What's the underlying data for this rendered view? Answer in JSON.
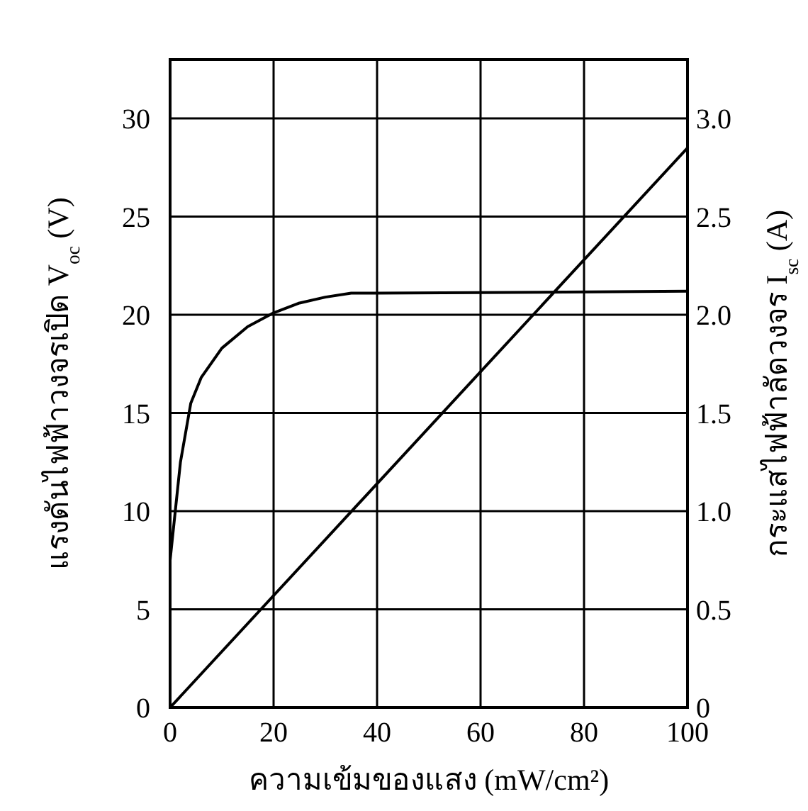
{
  "chart_data": {
    "type": "line",
    "xlabel": "ความเข้มของแสง (mW/cm²)",
    "ylabel": "แรงดันไฟฟ้าวงจรเปิด    V$_{oc}$ (V)",
    "y2label": "กระแสไฟฟ้าลัดวงจร    I$_{sc}$ (A)",
    "xlim": [
      0,
      100
    ],
    "xticks": [
      0,
      20,
      40,
      60,
      80,
      100
    ],
    "ylim": [
      0,
      33
    ],
    "yticks": [
      0,
      5,
      10,
      15,
      20,
      25,
      30
    ],
    "y2lim": [
      0,
      3.3
    ],
    "y2ticks": [
      {
        "value": 0,
        "label": "0"
      },
      {
        "value": 0.5,
        "label": "0.5"
      },
      {
        "value": 1,
        "label": "1.0"
      },
      {
        "value": 1.5,
        "label": "1.5"
      },
      {
        "value": 2,
        "label": "2.0"
      },
      {
        "value": 2.5,
        "label": "2.5"
      },
      {
        "value": 3,
        "label": "3.0"
      }
    ],
    "grid": true,
    "marker": "none",
    "line_style": "solid",
    "series": [
      {
        "color": "#000000",
        "x": [
          0,
          1,
          2,
          4,
          6,
          10,
          15,
          20,
          25,
          30,
          35,
          40,
          100
        ],
        "values": [
          7.5,
          10,
          12.5,
          15.5,
          16.8,
          18.3,
          19.4,
          20.1,
          20.6,
          20.9,
          21.1,
          21.1,
          21.2
        ]
      },
      {
        "color": "#000000",
        "axis": "y2",
        "x": [
          0,
          100
        ],
        "values": [
          0,
          2.85
        ]
      }
    ]
  }
}
